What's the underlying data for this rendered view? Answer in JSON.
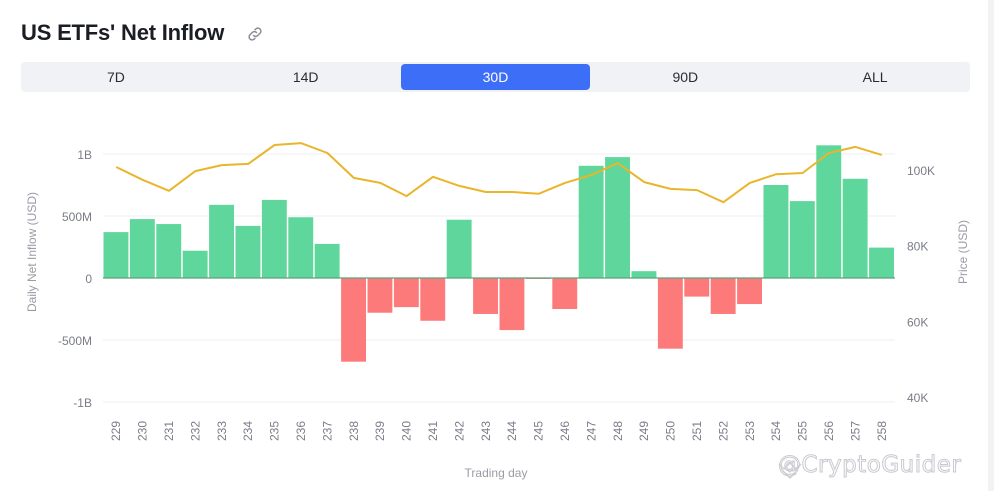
{
  "header": {
    "title": "US ETFs' Net Inflow",
    "link_icon": "link-icon"
  },
  "tabs": [
    {
      "label": "7D",
      "active": false
    },
    {
      "label": "14D",
      "active": false
    },
    {
      "label": "30D",
      "active": true
    },
    {
      "label": "90D",
      "active": false
    },
    {
      "label": "ALL",
      "active": false
    }
  ],
  "colors": {
    "accent": "#3d6ef7",
    "inflow": "#5fd69b",
    "outflow": "#fd7a7a",
    "price_line": "#e9b52a",
    "grid": "#eeeff2",
    "axis_text": "#7a7d88"
  },
  "watermark": "@CryptoGuider",
  "chart_data": {
    "type": "bar",
    "title": "US ETFs' Net Inflow",
    "xlabel": "Trading day",
    "ylabel": "Daily Net Inflow (USD)",
    "y2label": "Price (USD)",
    "ylim": [
      -1000000000,
      1000000000
    ],
    "y2lim": [
      40000,
      100000
    ],
    "yticks": [
      "1B",
      "500M",
      "0",
      "-500M",
      "-1B"
    ],
    "y2ticks": [
      "100K",
      "80K",
      "60K",
      "40K"
    ],
    "grid": true,
    "legend": "none",
    "categories": [
      "229",
      "230",
      "231",
      "232",
      "233",
      "234",
      "235",
      "236",
      "237",
      "238",
      "239",
      "240",
      "241",
      "242",
      "243",
      "244",
      "245",
      "246",
      "247",
      "248",
      "249",
      "250",
      "251",
      "252",
      "253",
      "254",
      "255",
      "256",
      "257",
      "258"
    ],
    "series": [
      {
        "name": "Daily Net Inflow (USD)",
        "type": "bar",
        "axis": "left",
        "unit": "M",
        "values": [
          370,
          475,
          435,
          220,
          590,
          420,
          630,
          490,
          275,
          -675,
          -280,
          -235,
          -345,
          470,
          -290,
          -420,
          -5,
          -250,
          905,
          975,
          55,
          -570,
          -150,
          -290,
          -210,
          750,
          620,
          1070,
          800,
          245
        ]
      },
      {
        "name": "Price (USD)",
        "type": "line",
        "axis": "right",
        "unit": "K",
        "values": [
          100.8,
          97.4,
          94.5,
          99.7,
          101.3,
          101.6,
          106.6,
          107.1,
          104.5,
          97.9,
          96.6,
          93.1,
          98.2,
          95.8,
          94.2,
          94.2,
          93.7,
          96.6,
          98.7,
          101.8,
          96.8,
          95.0,
          94.7,
          91.5,
          96.6,
          98.9,
          99.2,
          104.5,
          106.1,
          104.0
        ]
      }
    ]
  }
}
